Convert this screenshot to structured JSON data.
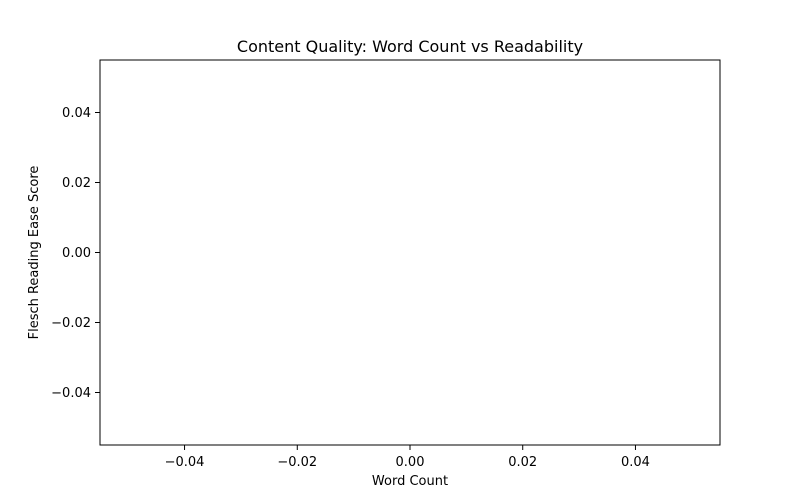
{
  "chart_data": {
    "type": "scatter",
    "title": "Content Quality: Word Count vs Readability",
    "xlabel": "Word Count",
    "ylabel": "Flesch Reading Ease Score",
    "x": [],
    "y": [],
    "xlim": [
      -0.055,
      0.055
    ],
    "ylim": [
      -0.055,
      0.055
    ],
    "x_ticks": [
      -0.04,
      -0.02,
      0.0,
      0.02,
      0.04
    ],
    "y_ticks": [
      -0.04,
      -0.02,
      0.0,
      0.02,
      0.04
    ],
    "x_tick_labels": [
      "−0.04",
      "−0.02",
      "0.00",
      "0.02",
      "0.04"
    ],
    "y_tick_labels": [
      "−0.04",
      "−0.02",
      "0.00",
      "0.02",
      "0.04"
    ],
    "grid": false,
    "legend": "none"
  }
}
